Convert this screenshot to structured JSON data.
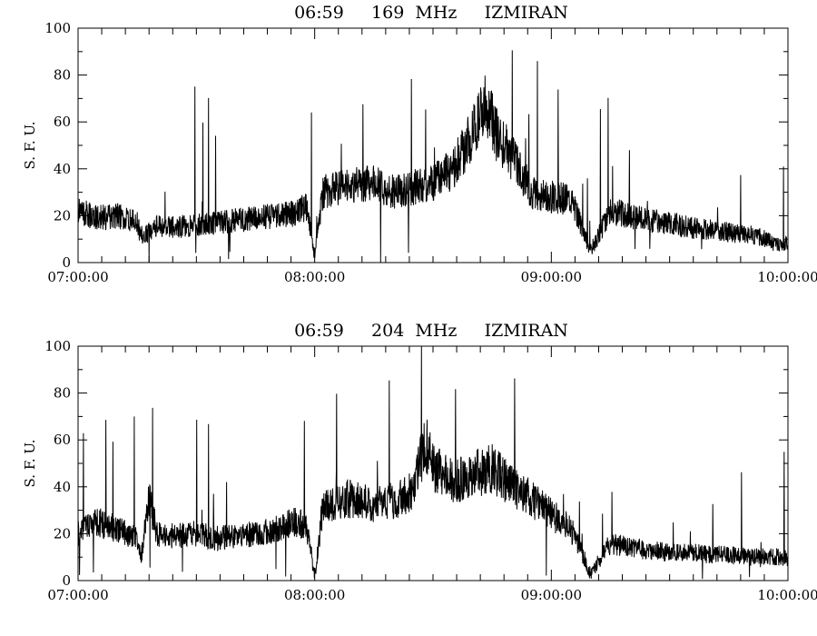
{
  "chart_data": [
    {
      "type": "line",
      "title": "06:59     169  MHz     IZMIRAN",
      "ylabel": "S. F. U.",
      "ylim": [
        0,
        100
      ],
      "yticks": [
        0,
        20,
        40,
        60,
        80,
        100
      ],
      "xlim": [
        "07:00:00",
        "10:00:00"
      ],
      "xticks": [
        "07:00:00",
        "08:00:00",
        "09:00:00",
        "10:00:00"
      ],
      "grid": false,
      "x_minutes_from_0700": [
        0,
        5,
        10,
        15,
        16,
        20,
        25,
        30,
        35,
        40,
        45,
        50,
        55,
        58,
        60,
        62,
        65,
        70,
        75,
        80,
        85,
        90,
        95,
        100,
        103,
        106,
        110,
        115,
        120,
        125,
        130,
        135,
        140,
        145,
        150,
        155,
        160,
        165,
        170,
        175,
        176,
        180
      ],
      "values": [
        22,
        19,
        20,
        17,
        10,
        16,
        15,
        16,
        17,
        18,
        19,
        20,
        21,
        24,
        3,
        30,
        32,
        33,
        34,
        30,
        32,
        34,
        40,
        55,
        70,
        55,
        45,
        30,
        28,
        27,
        5,
        22,
        20,
        18,
        17,
        15,
        14,
        13,
        12,
        10,
        8,
        8
      ]
    },
    {
      "type": "line",
      "title": "06:59     204  MHz     IZMIRAN",
      "ylabel": "S. F. U.",
      "ylim": [
        0,
        100
      ],
      "yticks": [
        0,
        20,
        40,
        60,
        80,
        100
      ],
      "xlim": [
        "07:00:00",
        "10:00:00"
      ],
      "xticks": [
        "07:00:00",
        "08:00:00",
        "09:00:00",
        "10:00:00"
      ],
      "grid": false,
      "x_minutes_from_0700": [
        0,
        5,
        10,
        15,
        16,
        18,
        20,
        25,
        30,
        35,
        40,
        45,
        50,
        55,
        58,
        60,
        62,
        65,
        70,
        75,
        80,
        85,
        88,
        90,
        95,
        100,
        105,
        110,
        115,
        120,
        125,
        130,
        135,
        140,
        145,
        150,
        155,
        160,
        165,
        170,
        175,
        180
      ],
      "values": [
        20,
        25,
        22,
        18,
        10,
        35,
        20,
        19,
        20,
        18,
        19,
        20,
        22,
        25,
        23,
        2,
        30,
        34,
        35,
        32,
        34,
        38,
        60,
        48,
        42,
        45,
        48,
        40,
        35,
        28,
        22,
        3,
        16,
        14,
        13,
        12,
        12,
        11,
        11,
        10,
        10,
        10
      ]
    }
  ]
}
